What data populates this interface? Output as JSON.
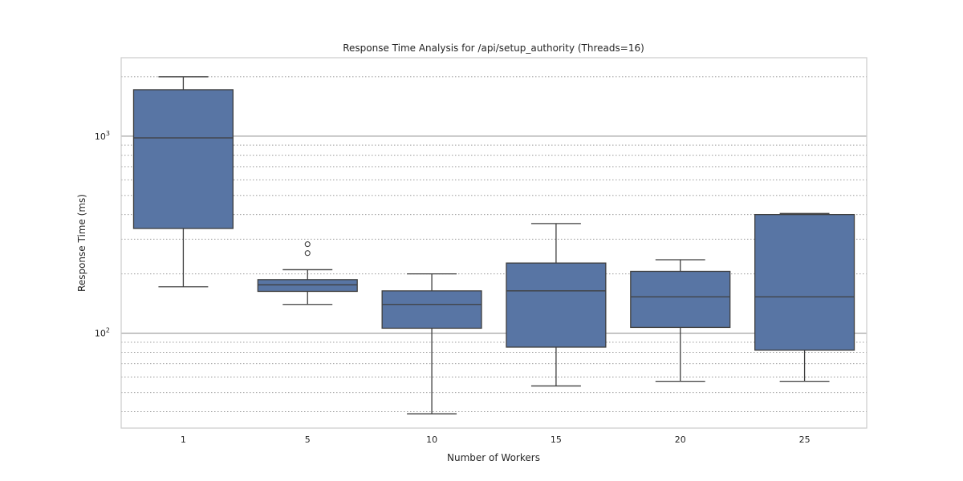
{
  "chart_data": {
    "type": "box",
    "title": "Response Time Analysis for /api/setup_authority (Threads=16)",
    "xlabel": "Number of Workers",
    "ylabel": "Response Time (ms)",
    "y_scale": "log",
    "ylim": [
      33,
      2500
    ],
    "grid": {
      "major": true,
      "minor": true,
      "major_style": "solid",
      "minor_style": "dotted"
    },
    "colors": {
      "box_fill": "#5875a4",
      "box_edge": "#3f3f3f",
      "grid_major": "#8c8c8c",
      "grid_minor": "#8c8c8c",
      "frame": "#cccccc",
      "text": "#262626"
    },
    "y_ticks": [
      {
        "value": 100,
        "base": "10",
        "exp": "2"
      },
      {
        "value": 1000,
        "base": "10",
        "exp": "3"
      }
    ],
    "categories": [
      "1",
      "5",
      "10",
      "15",
      "20",
      "25"
    ],
    "boxes": [
      {
        "category": "1",
        "whisker_low": 172,
        "q1": 340,
        "median": 980,
        "q3": 1720,
        "whisker_high": 2000,
        "outliers": []
      },
      {
        "category": "5",
        "whisker_low": 140,
        "q1": 163,
        "median": 176,
        "q3": 187,
        "whisker_high": 210,
        "outliers": [
          255,
          283
        ]
      },
      {
        "category": "10",
        "whisker_low": 39,
        "q1": 106,
        "median": 140,
        "q3": 164,
        "whisker_high": 200,
        "outliers": []
      },
      {
        "category": "15",
        "whisker_low": 54,
        "q1": 85,
        "median": 164,
        "q3": 227,
        "whisker_high": 360,
        "outliers": []
      },
      {
        "category": "20",
        "whisker_low": 57,
        "q1": 107,
        "median": 153,
        "q3": 206,
        "whisker_high": 236,
        "outliers": []
      },
      {
        "category": "25",
        "whisker_low": 57,
        "q1": 82,
        "median": 153,
        "q3": 400,
        "whisker_high": 405,
        "outliers": []
      }
    ]
  }
}
